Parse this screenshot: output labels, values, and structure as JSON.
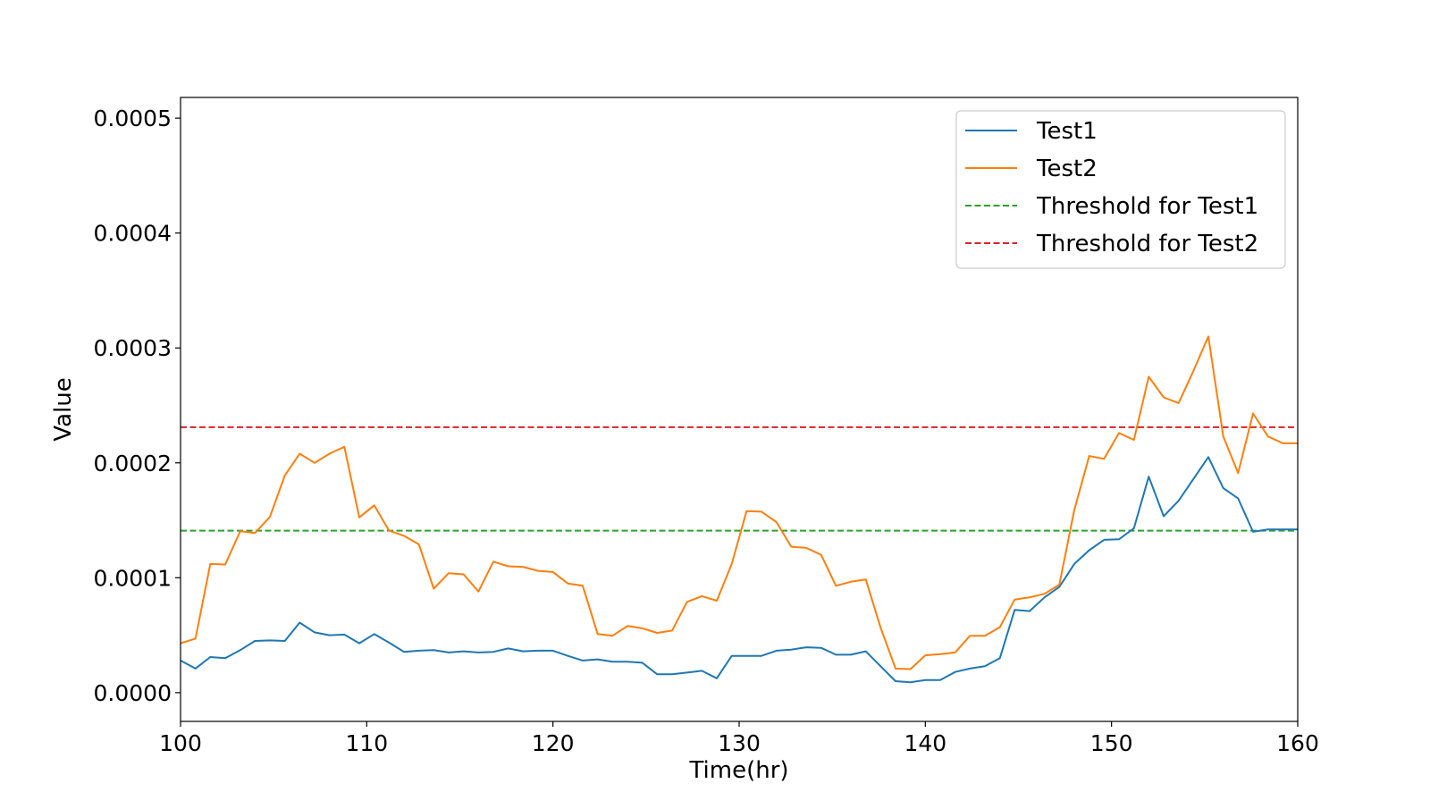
{
  "chart_data": {
    "type": "line",
    "xlabel": "Time(hr)",
    "ylabel": "Value",
    "xlim": [
      100,
      160
    ],
    "ylim": [
      -2.5e-05,
      0.000518
    ],
    "xticks": [
      100,
      110,
      120,
      130,
      140,
      150,
      160
    ],
    "xtick_labels": [
      "100",
      "110",
      "120",
      "130",
      "140",
      "150",
      "160"
    ],
    "yticks": [
      0.0,
      0.0001,
      0.0002,
      0.0003,
      0.0004,
      0.0005
    ],
    "ytick_labels": [
      "0.0000",
      "0.0001",
      "0.0002",
      "0.0003",
      "0.0004",
      "0.0005"
    ],
    "grid": false,
    "legend_position": "top-right",
    "legend": [
      "Test1",
      "Test2",
      "Threshold for Test1",
      "Threshold for Test2"
    ],
    "x": [
      100.0,
      100.8,
      101.6,
      102.4,
      103.2,
      104.0,
      104.8,
      105.6,
      106.4,
      107.2,
      108.0,
      108.8,
      109.6,
      110.4,
      111.2,
      112.0,
      112.8,
      113.6,
      114.4,
      115.2,
      116.0,
      116.8,
      117.6,
      118.4,
      119.2,
      120.0,
      120.8,
      121.6,
      122.4,
      123.2,
      124.0,
      124.8,
      125.6,
      126.4,
      127.2,
      128.0,
      128.8,
      129.6,
      130.4,
      131.2,
      132.0,
      132.8,
      133.6,
      134.4,
      135.2,
      136.0,
      136.8,
      137.6,
      138.4,
      139.2,
      140.0,
      140.8,
      141.6,
      142.4,
      143.2,
      144.0,
      144.8,
      145.6,
      146.4,
      147.2,
      148.0,
      148.8,
      149.6,
      150.4,
      151.2,
      152.0,
      152.8,
      153.6,
      154.4,
      155.2,
      156.0,
      156.8,
      157.6,
      158.4,
      159.2,
      160.0
    ],
    "series": [
      {
        "name": "Test1",
        "color": "#1f77b4",
        "style": "solid",
        "values": [
          2.8e-05,
          2.1e-05,
          3.1e-05,
          3e-05,
          3.7e-05,
          4.5e-05,
          4.55e-05,
          4.5e-05,
          6.1e-05,
          5.25e-05,
          5e-05,
          5.05e-05,
          4.3e-05,
          5.1e-05,
          4.35e-05,
          3.55e-05,
          3.65e-05,
          3.7e-05,
          3.5e-05,
          3.6e-05,
          3.5e-05,
          3.55e-05,
          3.85e-05,
          3.6e-05,
          3.65e-05,
          3.65e-05,
          3.2e-05,
          2.8e-05,
          2.9e-05,
          2.7e-05,
          2.7e-05,
          2.6e-05,
          1.6e-05,
          1.6e-05,
          1.75e-05,
          1.9e-05,
          1.25e-05,
          3.2e-05,
          3.2e-05,
          3.2e-05,
          3.65e-05,
          3.75e-05,
          3.95e-05,
          3.9e-05,
          3.3e-05,
          3.3e-05,
          3.6e-05,
          2.3e-05,
          1e-05,
          9e-06,
          1.1e-05,
          1.1e-05,
          1.8e-05,
          2.1e-05,
          2.3e-05,
          3e-05,
          7.2e-05,
          7.1e-05,
          8.3e-05,
          9.2e-05,
          0.000112,
          0.000124,
          0.000133,
          0.0001335,
          0.000143,
          0.000188,
          0.0001535,
          0.000167,
          0.000186,
          0.000205,
          0.000178,
          0.000169,
          0.00014,
          0.000142,
          0.000142,
          0.000142
        ]
      },
      {
        "name": "Test2",
        "color": "#ff7f0e",
        "style": "solid",
        "values": [
          4.3e-05,
          4.7e-05,
          0.000112,
          0.0001115,
          0.0001405,
          0.000139,
          0.000153,
          0.000189,
          0.000208,
          0.0002,
          0.000208,
          0.000214,
          0.0001525,
          0.000163,
          0.000141,
          0.0001365,
          0.000129,
          9.05e-05,
          0.000104,
          0.000103,
          8.8e-05,
          0.000114,
          0.00011,
          0.0001095,
          0.000106,
          0.000105,
          9.5e-05,
          9.3e-05,
          5.1e-05,
          4.95e-05,
          5.8e-05,
          5.6e-05,
          5.2e-05,
          5.4e-05,
          7.9e-05,
          8.4e-05,
          8e-05,
          0.000112,
          0.000158,
          0.0001575,
          0.0001485,
          0.000127,
          0.000126,
          0.00012,
          9.3e-05,
          9.65e-05,
          9.85e-05,
          5.65e-05,
          2.1e-05,
          2.05e-05,
          3.25e-05,
          3.35e-05,
          3.5e-05,
          4.95e-05,
          4.95e-05,
          5.7e-05,
          8.1e-05,
          8.3e-05,
          8.6e-05,
          9.4e-05,
          0.000159,
          0.000206,
          0.0002035,
          0.000226,
          0.00022,
          0.000275,
          0.000257,
          0.000252,
          0.00028,
          0.00031,
          0.000223,
          0.000191,
          0.000243,
          0.000223,
          0.000217,
          0.000217
        ]
      }
    ],
    "thresholds": [
      {
        "name": "Threshold for Test1",
        "value": 0.000141,
        "color": "#2ca02c",
        "style": "dashed"
      },
      {
        "name": "Threshold for Test2",
        "value": 0.000231,
        "color": "#d62728",
        "style": "dashed"
      }
    ]
  }
}
